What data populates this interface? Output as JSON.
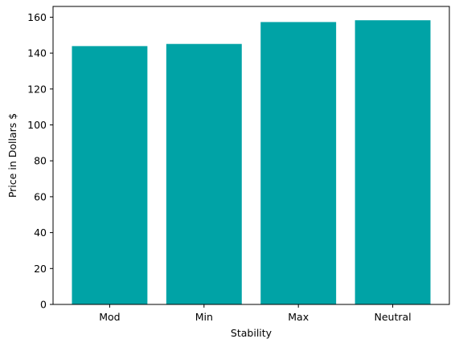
{
  "chart_data": {
    "type": "bar",
    "title": "",
    "xlabel": "Stability",
    "ylabel": "Price in Dollars $",
    "categories": [
      "Mod",
      "Min",
      "Max",
      "Neutral"
    ],
    "values": [
      143.9,
      145.1,
      157.3,
      158.3
    ],
    "ylim": [
      0,
      166
    ],
    "yticks": [
      0,
      20,
      40,
      60,
      80,
      100,
      120,
      140,
      160
    ],
    "bar_color": "#00a3a6",
    "grid": false,
    "legend": "none"
  }
}
